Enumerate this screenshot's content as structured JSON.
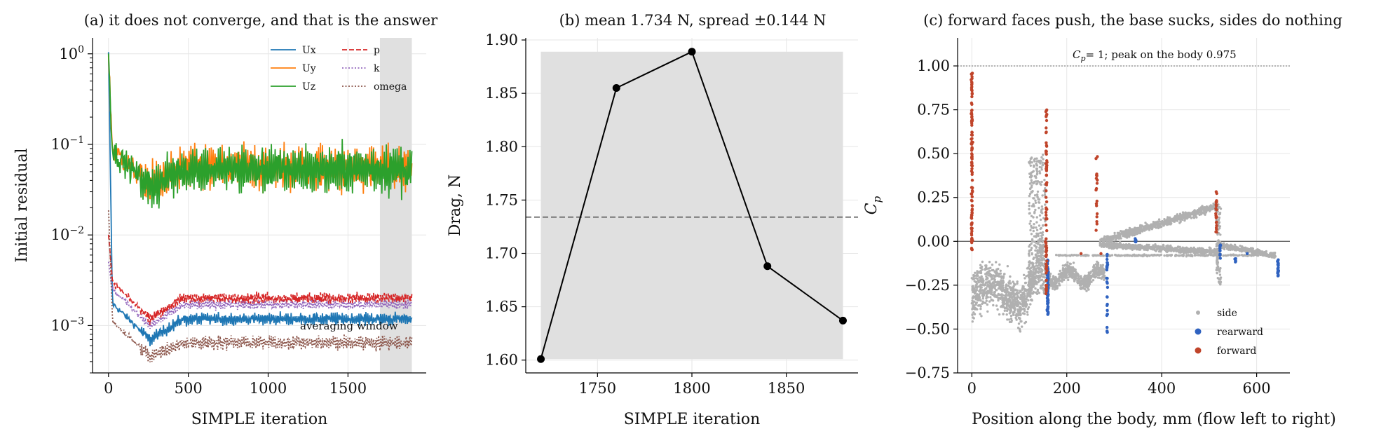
{
  "colors": {
    "Ux": "#1f77b4",
    "Uy": "#ff7f0e",
    "Uz": "#2ca02c",
    "p": "#d62728",
    "k": "#9467bd",
    "omega": "#8c564b",
    "side": "#b0b0b0",
    "rearward": "#2f62c0",
    "forward": "#c0442a",
    "window": "#e0e0e0",
    "mean_line": "#666666"
  },
  "chart_data": [
    {
      "type": "line",
      "title": "(a) it does not converge, and that is the answer",
      "xlabel": "SIMPLE iteration",
      "ylabel": "Initial residual",
      "xlim": [
        -100,
        1990
      ],
      "xticks": [
        "0",
        "500",
        "1000",
        "1500"
      ],
      "yscale": "log",
      "ylim": [
        0.0003,
        1.5
      ],
      "yticks": [
        {
          "base": "10",
          "exp": "0"
        },
        {
          "base": "10",
          "exp": "−1"
        },
        {
          "base": "10",
          "exp": "−2"
        },
        {
          "base": "10",
          "exp": "−3"
        }
      ],
      "grid": true,
      "legend": "top-right",
      "shaded_window": [
        1700,
        1900
      ],
      "annotation": "averaging window",
      "series": [
        {
          "name": "Ux",
          "style": "solid",
          "start": 1.0,
          "dip": 0.0007,
          "steady": 0.00118,
          "amp": 0.07
        },
        {
          "name": "Uy",
          "style": "solid",
          "start": 0.9,
          "dip": 0.035,
          "steady": 0.055,
          "amp": 0.25
        },
        {
          "name": "Uz",
          "style": "solid",
          "start": 1.0,
          "dip": 0.034,
          "steady": 0.053,
          "amp": 0.27
        },
        {
          "name": "p",
          "style": "dashed",
          "start": 0.01,
          "dip": 0.0012,
          "steady": 0.002,
          "amp": 0.06
        },
        {
          "name": "k",
          "style": "dotted",
          "start": 0.005,
          "dip": 0.001,
          "steady": 0.0017,
          "amp": 0.05
        },
        {
          "name": "omega",
          "style": "dotted",
          "start": 0.02,
          "dip": 0.00045,
          "steady": 0.00065,
          "amp": 0.08
        }
      ]
    },
    {
      "type": "line",
      "title": "(b) mean 1.734 N, spread ±0.144 N",
      "xlabel": "SIMPLE iteration",
      "ylabel": "Drag, N",
      "xlim": [
        1712,
        1888
      ],
      "ylim": [
        1.588,
        1.902
      ],
      "xticks": [
        1750,
        1800,
        1850
      ],
      "yticks": [
        "1.60",
        "1.65",
        "1.70",
        "1.75",
        "1.80",
        "1.85",
        "1.90"
      ],
      "grid": true,
      "x": [
        1720,
        1760,
        1800,
        1840,
        1880
      ],
      "values": [
        1.601,
        1.855,
        1.889,
        1.688,
        1.637
      ],
      "mean": 1.734,
      "band": [
        1.601,
        1.889
      ]
    },
    {
      "type": "scatter",
      "title": "(c) forward faces push, the base sucks, sides do nothing",
      "xlabel": "Position along the body, mm (flow left to right)",
      "ylabel": "C_p",
      "xlim": [
        -30,
        670
      ],
      "ylim": [
        -0.75,
        1.16
      ],
      "xticks": [
        0,
        200,
        400,
        600
      ],
      "yticks": [
        "−0.75",
        "−0.50",
        "−0.25",
        "0.00",
        "0.25",
        "0.50",
        "0.75",
        "1.00"
      ],
      "grid": true,
      "legend": "bottom-right",
      "reference_line": 1.0,
      "annotation": "= 1; peak on the body 0.975",
      "series": [
        {
          "name": "side"
        },
        {
          "name": "rearward"
        },
        {
          "name": "forward"
        }
      ]
    }
  ]
}
